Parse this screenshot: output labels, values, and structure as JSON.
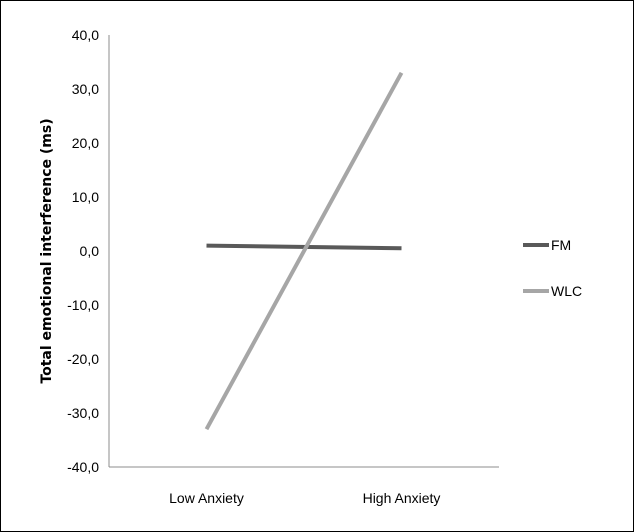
{
  "chart_data": {
    "type": "line",
    "categories": [
      "Low Anxiety",
      "High Anxiety"
    ],
    "series": [
      {
        "name": "FM",
        "values": [
          1.0,
          0.5
        ],
        "color": "#595959"
      },
      {
        "name": "WLC",
        "values": [
          -33.0,
          33.0
        ],
        "color": "#a6a6a6"
      }
    ],
    "ylabel": "Total emotional interference (ms)",
    "ylim": [
      -40,
      40
    ],
    "yticks": [
      "40,0",
      "30,0",
      "20,0",
      "10,0",
      "0,0",
      "-10,0",
      "-20,0",
      "-30,0",
      "-40,0"
    ],
    "legend_position": "right",
    "grid": false
  }
}
